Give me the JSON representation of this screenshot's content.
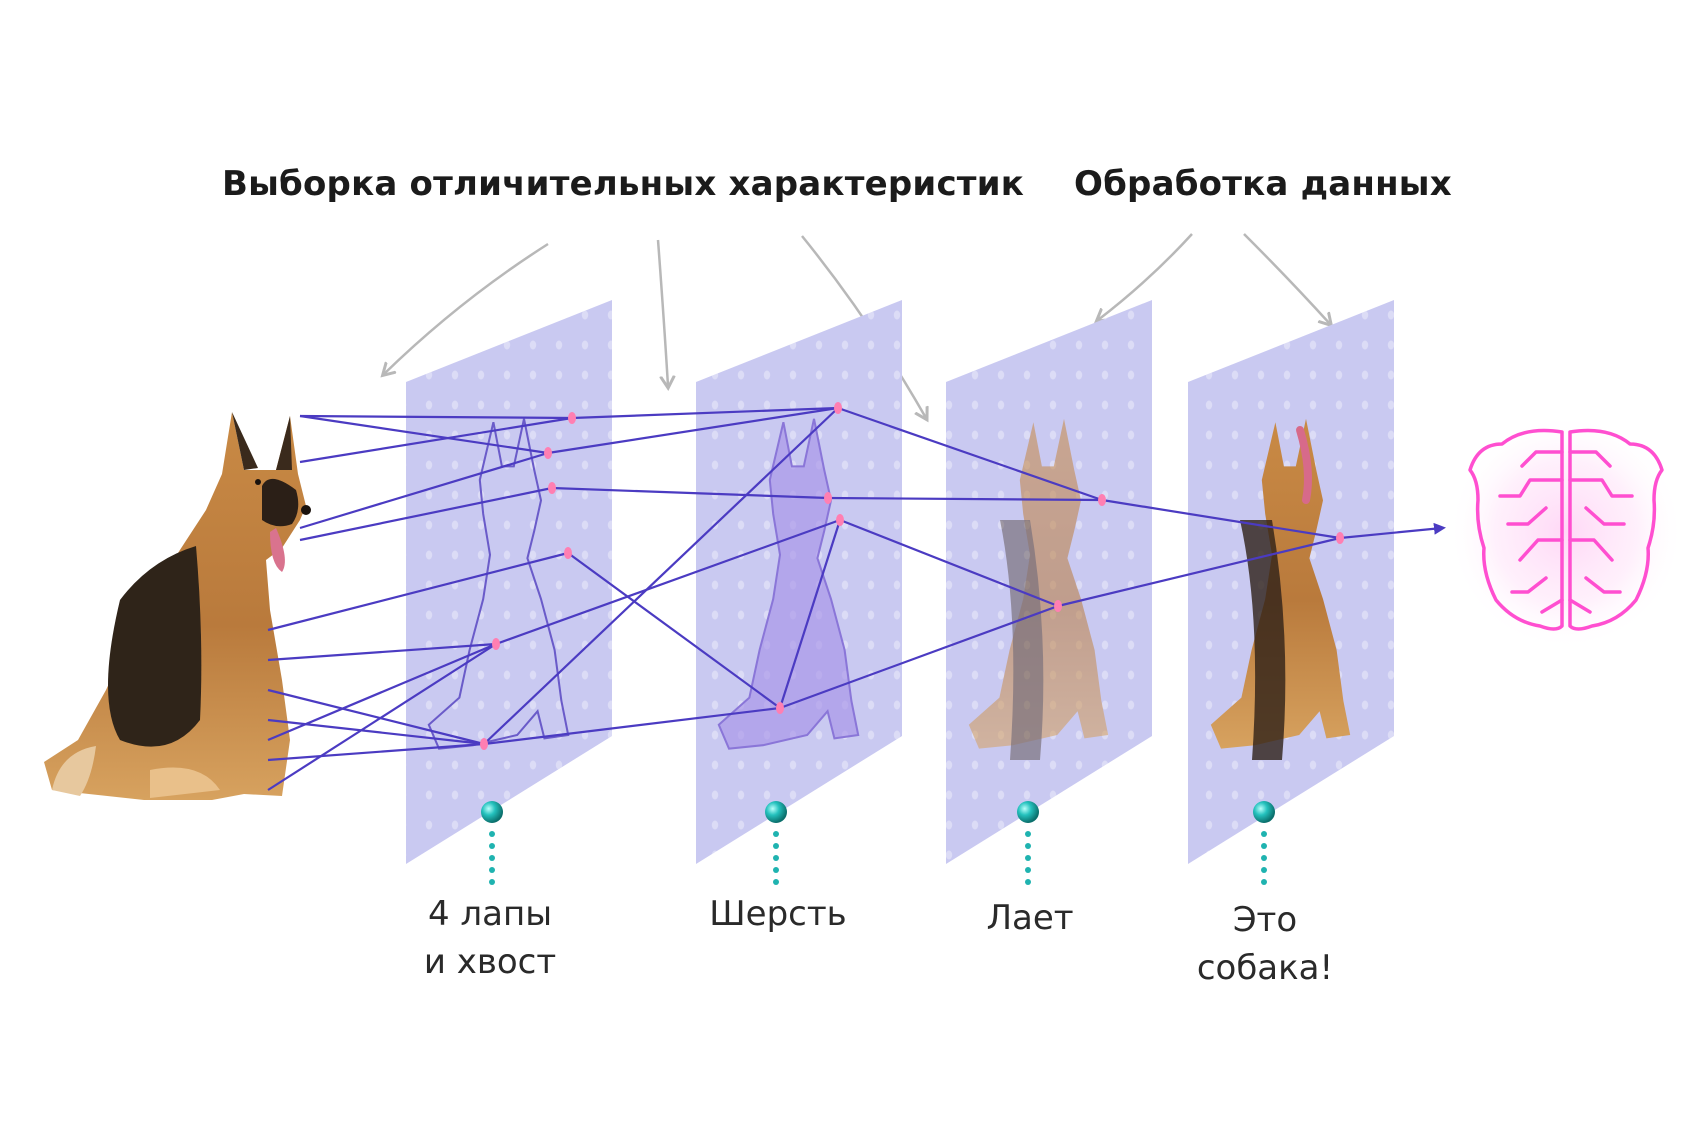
{
  "headings": {
    "feature_extraction": "Выборка отличительных характеристик",
    "data_processing": "Обработка данных"
  },
  "layers": [
    {
      "caption_lines": [
        "4 лапы",
        "и хвост"
      ],
      "content": "dog-outline"
    },
    {
      "caption_lines": [
        "Шерсть"
      ],
      "content": "dog-silhouette"
    },
    {
      "caption_lines": [
        "Лает"
      ],
      "content": "faded-dog-photo"
    },
    {
      "caption_lines": [
        "Это",
        "собака!"
      ],
      "content": "dog-photo"
    }
  ],
  "colors": {
    "layer_fill": "#c9c9f1",
    "connection_line": "#4b3bc2",
    "node": "#ff7fb2",
    "bead": "#1fb3b0",
    "brain": "#ff4fd0",
    "pointer_arrow": "#b8b8b8"
  },
  "icons": {
    "input": "dog-photo",
    "output": "brain-icon"
  }
}
